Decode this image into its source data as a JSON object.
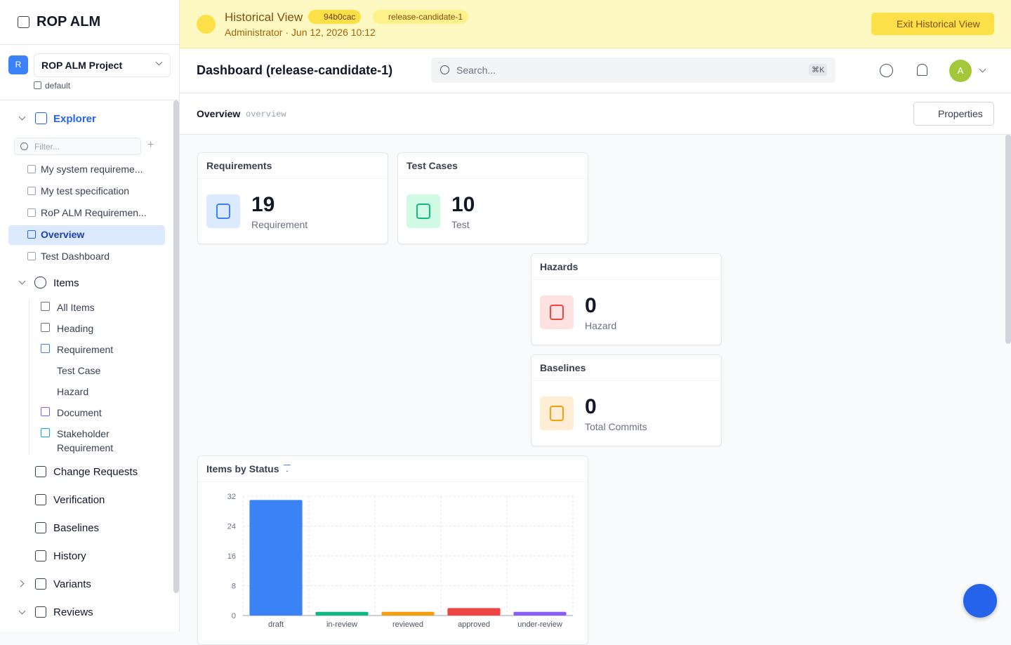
{
  "sidebar": {
    "app_title": "ROP ALM",
    "project_initial": "R",
    "project": "ROP ALM Project",
    "workspace": "default",
    "explorer": "Explorer",
    "filter_placeholder": "Filter...",
    "documents": [
      "My system requireme...",
      "My test specification",
      "RoP ALM Requiremen...",
      "Overview",
      "Test Dashboard"
    ],
    "items_label": "Items",
    "item_types": [
      "All Items",
      "Heading",
      "Requirement",
      "Test Case",
      "Hazard",
      "Document",
      "Stakeholder Requirement"
    ],
    "nav": [
      "Change Requests",
      "Verification",
      "Baselines",
      "History",
      "Variants",
      "Reviews"
    ]
  },
  "banner": {
    "title": "Historical View",
    "commit": "94b0cac",
    "tag": "release-candidate-1",
    "meta": "Administrator · Jun 12, 2026 10:12",
    "exit": "Exit Historical View"
  },
  "header": {
    "title": "Dashboard (release-candidate-1)",
    "search_placeholder": "Search...",
    "shortcut": "⌘K",
    "avatar": "A"
  },
  "toolbar": {
    "title": "Overview",
    "slug": "overview",
    "properties": "Properties"
  },
  "cards": [
    {
      "title": "Requirements",
      "value": 19,
      "unit": "Requirement"
    },
    {
      "title": "Test Cases",
      "value": 10,
      "unit": "Test"
    },
    {
      "title": "Hazards",
      "value": 0,
      "unit": "Hazard"
    },
    {
      "title": "Baselines",
      "value": 0,
      "unit": "Total Commits"
    }
  ],
  "chart_data": {
    "type": "bar",
    "title": "Items by Status",
    "categories": [
      "draft",
      "in-review",
      "reviewed",
      "approved",
      "under-review"
    ],
    "values": [
      31,
      1,
      1,
      2,
      1
    ],
    "colors": [
      "#3b82f6",
      "#10b981",
      "#f59e0b",
      "#ef4444",
      "#8b5cf6"
    ],
    "ylim": [
      0,
      32
    ],
    "yticks": [
      0,
      8,
      16,
      24,
      32
    ],
    "grid": true
  }
}
